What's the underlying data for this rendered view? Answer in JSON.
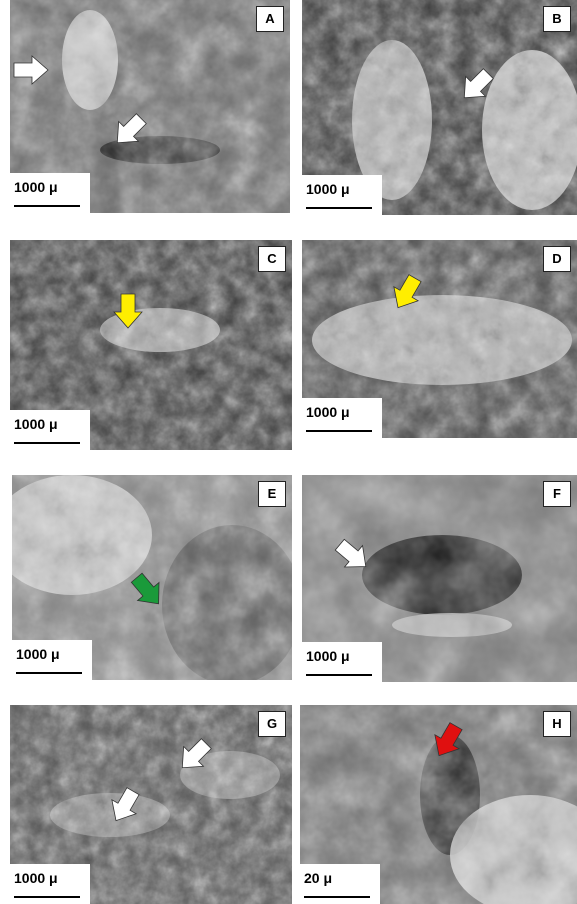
{
  "panels": [
    {
      "letter": "A",
      "scale_label": "1000 μ"
    },
    {
      "letter": "B",
      "scale_label": "1000 μ"
    },
    {
      "letter": "C",
      "scale_label": "1000 μ"
    },
    {
      "letter": "D",
      "scale_label": "1000 μ"
    },
    {
      "letter": "E",
      "scale_label": "1000 μ"
    },
    {
      "letter": "F",
      "scale_label": "1000 μ"
    },
    {
      "letter": "G",
      "scale_label": "1000 μ"
    },
    {
      "letter": "H",
      "scale_label": "20 μ"
    }
  ]
}
